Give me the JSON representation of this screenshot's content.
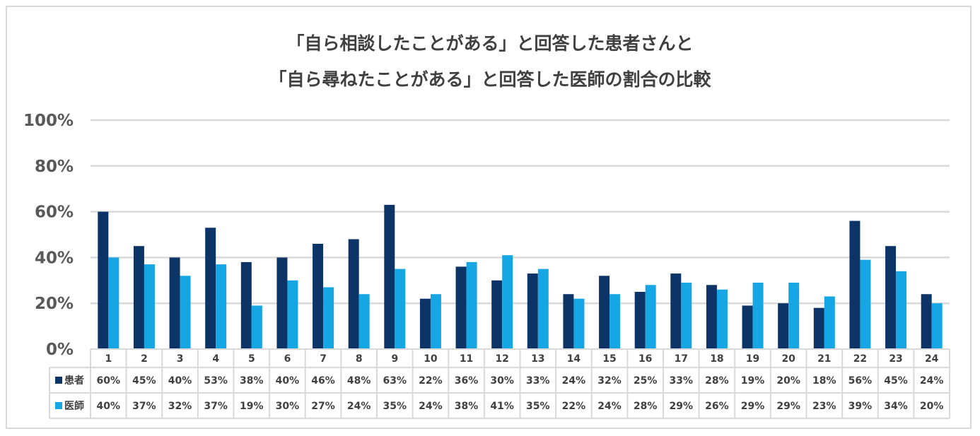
{
  "chart_data": {
    "type": "bar",
    "title_lines": [
      "「自ら相談したことがある」と回答した患者さんと",
      "「自ら尋ねたことがある」と回答した医師の割合の比較"
    ],
    "categories": [
      "1",
      "2",
      "3",
      "4",
      "5",
      "6",
      "7",
      "8",
      "9",
      "10",
      "11",
      "12",
      "13",
      "14",
      "15",
      "16",
      "17",
      "18",
      "19",
      "20",
      "21",
      "22",
      "23",
      "24"
    ],
    "series": [
      {
        "name": "患者",
        "color": "#0d3466",
        "values": [
          60,
          45,
          40,
          53,
          38,
          40,
          46,
          48,
          63,
          22,
          36,
          30,
          33,
          24,
          32,
          25,
          33,
          28,
          19,
          20,
          18,
          56,
          45,
          24
        ]
      },
      {
        "name": "医師",
        "color": "#16a6e4",
        "values": [
          40,
          37,
          32,
          37,
          19,
          30,
          27,
          24,
          35,
          24,
          38,
          41,
          35,
          22,
          24,
          28,
          29,
          26,
          29,
          29,
          23,
          39,
          34,
          20
        ]
      }
    ],
    "ylim": [
      0,
      100
    ],
    "yticks": [
      "0%",
      "20%",
      "40%",
      "60%",
      "80%",
      "100%"
    ],
    "value_suffix": "%",
    "grid": true,
    "data_table": true
  }
}
